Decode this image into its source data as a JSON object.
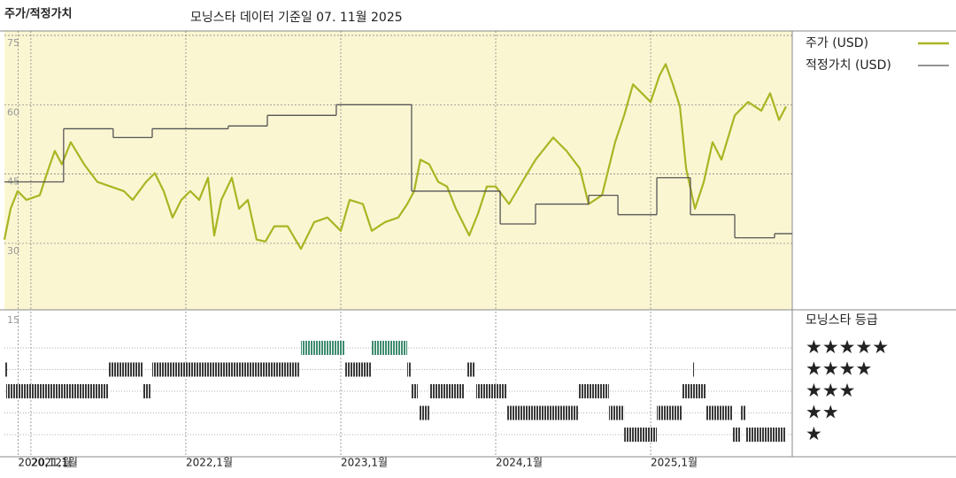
{
  "chart_data": [
    {
      "type": "line",
      "title": "주가/적정가치",
      "subtitle": "모닝스타 데이터 기준일 07. 11월 2025",
      "xlim": [
        2020.829,
        2025.914
      ],
      "ylim": [
        16,
        75
      ],
      "yticks": [
        30,
        45,
        60,
        75
      ],
      "xticks": [
        {
          "value": 2020.917,
          "label": "2020,12월"
        },
        {
          "value": 2021.0,
          "label": "2021,1월"
        },
        {
          "value": 2022.0,
          "label": "2022,1월"
        },
        {
          "value": 2023.0,
          "label": "2023,1월"
        },
        {
          "value": 2024.0,
          "label": "2024,1월"
        },
        {
          "value": 2025.0,
          "label": "2025,1월"
        }
      ],
      "grid": true,
      "legend": "right",
      "background": "#fbf6d2",
      "series": [
        {
          "name": "주가 (USD)",
          "color": "#a9b523",
          "x": [
            2020.829,
            2020.869,
            2020.914,
            2020.971,
            2021.057,
            2021.114,
            2021.154,
            2021.2,
            2021.257,
            2021.343,
            2021.429,
            2021.514,
            2021.6,
            2021.657,
            2021.743,
            2021.8,
            2021.857,
            2021.914,
            2021.971,
            2022.029,
            2022.086,
            2022.143,
            2022.183,
            2022.229,
            2022.297,
            2022.343,
            2022.4,
            2022.457,
            2022.514,
            2022.571,
            2022.657,
            2022.743,
            2022.829,
            2022.914,
            2023.0,
            2023.057,
            2023.143,
            2023.2,
            2023.286,
            2023.371,
            2023.429,
            2023.474,
            2023.514,
            2023.571,
            2023.629,
            2023.686,
            2023.743,
            2023.829,
            2023.886,
            2023.943,
            2024.0,
            2024.086,
            2024.171,
            2024.257,
            2024.371,
            2024.457,
            2024.543,
            2024.6,
            2024.686,
            2024.771,
            2024.829,
            2024.886,
            2024.943,
            2025.0,
            2025.057,
            2025.097,
            2025.143,
            2025.189,
            2025.229,
            2025.286,
            2025.343,
            2025.4,
            2025.457,
            2025.543,
            2025.629,
            2025.714,
            2025.771,
            2025.829,
            2025.874
          ],
          "values": [
            30.8,
            37.5,
            41.3,
            39.4,
            40.4,
            46.2,
            50,
            47.1,
            51.9,
            47.1,
            43.3,
            42.3,
            41.3,
            39.4,
            43.3,
            45.2,
            41.3,
            35.6,
            39.4,
            41.3,
            39.4,
            44.2,
            31.7,
            39.4,
            44.2,
            37.5,
            39.4,
            30.8,
            30.4,
            33.7,
            33.7,
            28.8,
            34.6,
            35.6,
            32.7,
            39.4,
            38.5,
            32.7,
            34.6,
            35.6,
            38.5,
            41.3,
            48.1,
            47.1,
            43.3,
            42.3,
            37.5,
            31.7,
            36.5,
            42.3,
            42.3,
            38.5,
            43.3,
            48.1,
            52.9,
            50,
            46.2,
            38.5,
            40.4,
            51.9,
            57.7,
            64.4,
            62.5,
            60.6,
            66.3,
            68.8,
            64.4,
            59.6,
            46.2,
            37.5,
            43.3,
            51.9,
            48.1,
            57.7,
            60.6,
            58.7,
            62.5,
            56.7,
            59.6
          ]
        },
        {
          "name": "적정가치 (USD)",
          "color": "#555555",
          "step": true,
          "x": [
            2020.829,
            2021.211,
            2021.531,
            2021.783,
            2022.274,
            2022.526,
            2022.971,
            2023.457,
            2024.029,
            2024.257,
            2024.6,
            2024.789,
            2025.04,
            2025.257,
            2025.543,
            2025.8
          ],
          "values": [
            43.3,
            54.8,
            52.9,
            54.8,
            55.4,
            57.7,
            60,
            41.3,
            34.2,
            38.5,
            40.4,
            36.2,
            44.2,
            36.2,
            31.2,
            32.1
          ]
        }
      ]
    },
    {
      "type": "rating-timeline",
      "title": "모닝스타 등급",
      "ytick_label": "15",
      "categories": [
        "★★★★★",
        "★★★★",
        "★★★",
        "★★",
        "★"
      ],
      "color": "#3a3a3a",
      "top_color": "#3f8c6f",
      "segments": {
        "start": [
          2020.829,
          2021.503,
          2021.783,
          2023.029,
          2023.429,
          2023.811,
          2025.269,
          2022.743,
          2023.2,
          2020.84,
          2021.726,
          2023.457,
          2023.571,
          2023.874,
          2024.531,
          2025.2,
          2023.503,
          2024.069,
          2024.731,
          2025.04,
          2025.354,
          2025.583,
          2024.829,
          2025.531,
          2025.617
        ],
        "end": [
          2020.846,
          2021.726,
          2022.731,
          2023.2,
          2023.451,
          2023.869,
          2025.28,
          2023.029,
          2023.429,
          2021.503,
          2021.771,
          2023.497,
          2023.8,
          2024.069,
          2024.731,
          2025.354,
          2023.571,
          2024.531,
          2024.829,
          2025.2,
          2025.531,
          2025.617,
          2025.04,
          2025.583,
          2025.874
        ],
        "rating": [
          4,
          4,
          4,
          4,
          4,
          4,
          4,
          5,
          5,
          3,
          3,
          3,
          3,
          3,
          3,
          3,
          2,
          2,
          2,
          2,
          2,
          2,
          1,
          1,
          1
        ]
      }
    }
  ]
}
